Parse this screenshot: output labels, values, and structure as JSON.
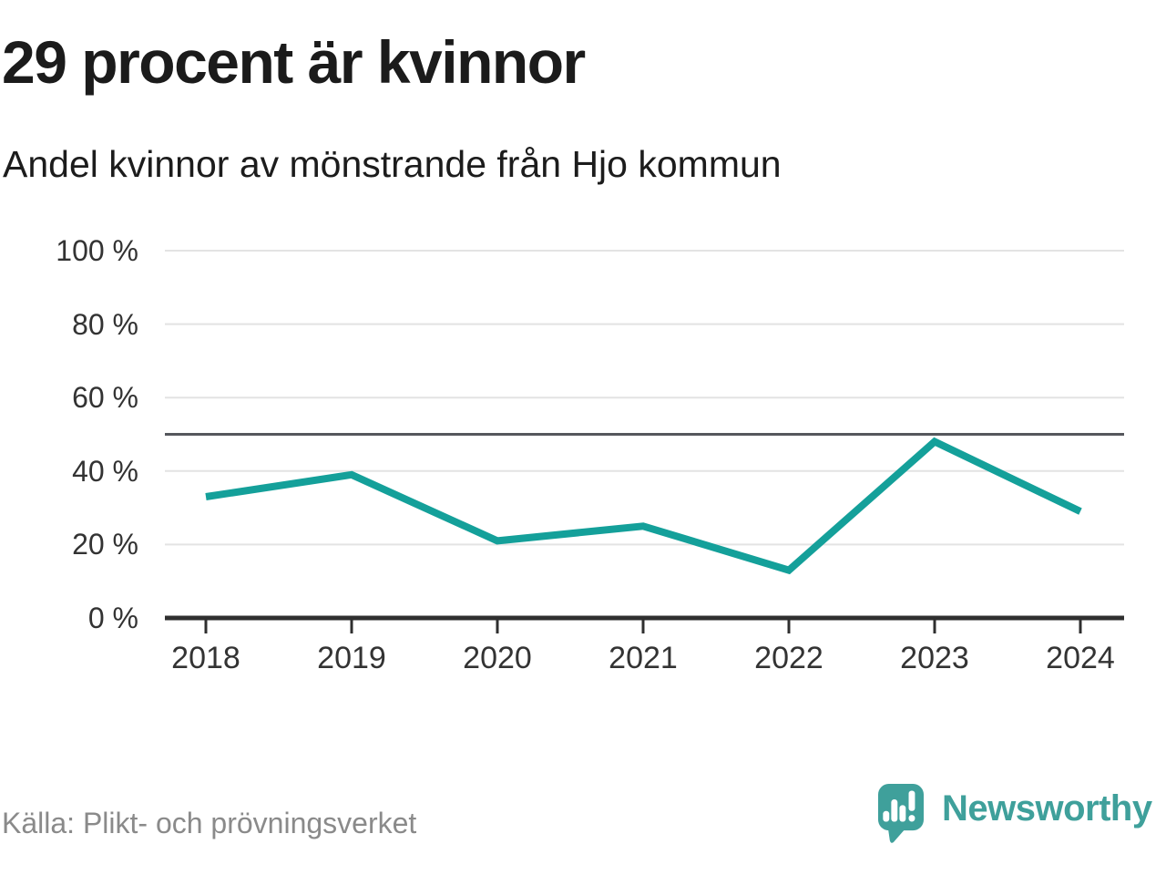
{
  "chart_data": {
    "type": "line",
    "title": "29 procent är kvinnor",
    "subtitle": "Andel kvinnor av mönstrande från Hjo kommun",
    "categories": [
      "2018",
      "2019",
      "2020",
      "2021",
      "2022",
      "2023",
      "2024"
    ],
    "series": [
      {
        "name": "Andel kvinnor",
        "values": [
          33,
          39,
          21,
          25,
          13,
          48,
          29
        ]
      }
    ],
    "unit": "%",
    "ylim": [
      0,
      100
    ],
    "ytick_values": [
      0,
      20,
      40,
      60,
      80,
      100
    ],
    "ytick_labels": [
      "0 %",
      "20 %",
      "40 %",
      "60 %",
      "80 %",
      "100 %"
    ],
    "refline": 50,
    "grid": "horizontal",
    "legend": "none",
    "colors": {
      "line": "#14A09A",
      "refline": "#55575C",
      "grid": "#E3E3E3",
      "axis": "#2F2F2F"
    }
  },
  "footer": {
    "source": "Källa: Plikt- och prövningsverket",
    "brand": "Newsworthy",
    "brand_color": "#3FA09B"
  }
}
